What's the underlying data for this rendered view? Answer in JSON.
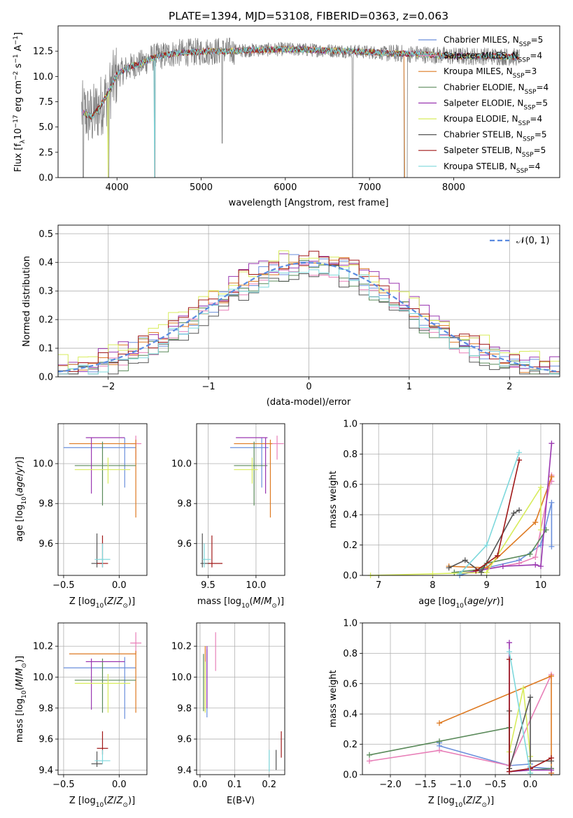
{
  "figure": {
    "title": "PLATE=1394, MJD=53108, FIBERID=0363, z=0.063"
  },
  "chart_data": [
    {
      "id": "spectrum",
      "type": "line",
      "xlabel": "wavelength [Angstrom, rest frame]",
      "ylabel_parts": [
        "Flux [f",
        "λ",
        "10",
        "−17",
        " erg cm",
        "−2",
        " s",
        "−1",
        " A",
        "−1",
        "]"
      ],
      "xlim": [
        3300,
        9260
      ],
      "ylim": [
        0,
        15.0
      ],
      "xticks": [
        4000,
        5000,
        6000,
        7000,
        8000
      ],
      "yticks": [
        0.0,
        2.5,
        5.0,
        7.5,
        10.0,
        12.5
      ],
      "grid": false,
      "legend_position": "right",
      "legend": [
        {
          "label": "Chabrier MILES, N",
          "sub": "SSP",
          "tail": "=5",
          "color": "#6a8fdc"
        },
        {
          "label": "Salpeter MILES, N",
          "sub": "SSP",
          "tail": "=4",
          "color": "#e87fb8"
        },
        {
          "label": "Kroupa MILES, N",
          "sub": "SSP",
          "tail": "=3",
          "color": "#de7a22"
        },
        {
          "label": "Chabrier ELODIE, N",
          "sub": "SSP",
          "tail": "=4",
          "color": "#5a8a5a"
        },
        {
          "label": "Salpeter ELODIE, N",
          "sub": "SSP",
          "tail": "=5",
          "color": "#9a37b0"
        },
        {
          "label": "Kroupa ELODIE, N",
          "sub": "SSP",
          "tail": "=4",
          "color": "#d8ec5c"
        },
        {
          "label": "Chabrier STELIB, N",
          "sub": "SSP",
          "tail": "=5",
          "color": "#555555"
        },
        {
          "label": "Salpeter STELIB, N",
          "sub": "SSP",
          "tail": "=5",
          "color": "#a01818"
        },
        {
          "label": "Kroupa STELIB, N",
          "sub": "SSP",
          "tail": "=4",
          "color": "#7ed8dc"
        }
      ],
      "data_color": "#808080",
      "continuum": {
        "x": [
          3580,
          3700,
          3800,
          3900,
          4000,
          4100,
          4200,
          4300,
          4400,
          4500,
          4700,
          4900,
          5100,
          5300,
          5600,
          6000,
          6400,
          6800,
          7200,
          7600,
          8000,
          8500,
          8800
        ],
        "y": [
          6.5,
          6.0,
          7.0,
          8.5,
          10.2,
          10.7,
          11.1,
          11.3,
          11.8,
          12.0,
          12.3,
          12.4,
          12.5,
          12.5,
          12.6,
          12.7,
          12.6,
          12.5,
          12.3,
          12.2,
          12.0,
          12.0,
          11.9
        ]
      }
    },
    {
      "id": "residuals",
      "type": "bar",
      "xlabel": "(data-model)/error",
      "ylabel": "Normed distribution",
      "xlim": [
        -2.5,
        2.5
      ],
      "ylim": [
        0,
        0.53
      ],
      "xticks": [
        -2,
        -1,
        0,
        1,
        2
      ],
      "yticks": [
        0.0,
        0.1,
        0.2,
        0.3,
        0.4,
        0.5
      ],
      "grid": true,
      "bin_width": 0.1,
      "curve_label": "𝒩(0, 1)",
      "curve_color": "#5b8be0"
    },
    {
      "id": "age-Z",
      "type": "scatter",
      "xlabel": "Z [log",
      "xlabel_sub": "10",
      "xlabel_tail": "(Z/Z",
      "ylabel": "age  [log",
      "xlim": [
        -0.55,
        0.25
      ],
      "ylim": [
        9.44,
        10.2
      ],
      "xticks": [
        -0.5,
        0.0
      ],
      "yticks": [
        9.6,
        9.8,
        10.0
      ],
      "grid": true
    },
    {
      "id": "age-mass",
      "type": "scatter",
      "xlabel": "mass [log",
      "xlim": [
        9.38,
        10.3
      ],
      "ylim": [
        9.44,
        10.2
      ],
      "xticks": [
        9.5,
        10.0
      ],
      "yticks": [
        9.6,
        9.8,
        10.0
      ],
      "grid": true
    },
    {
      "id": "mw-age",
      "type": "line",
      "xlabel": "age  [log",
      "ylabel": "mass weight",
      "xlim": [
        6.7,
        10.35
      ],
      "ylim": [
        0,
        1.0
      ],
      "xticks": [
        7,
        8,
        9,
        10
      ],
      "yticks": [
        0.0,
        0.2,
        0.4,
        0.6,
        0.8,
        1.0
      ],
      "grid": true
    },
    {
      "id": "mass-Z",
      "type": "scatter",
      "xlabel": "Z [log",
      "ylabel": "mass [log",
      "xlim": [
        -0.55,
        0.25
      ],
      "ylim": [
        9.37,
        10.35
      ],
      "xticks": [
        -0.5,
        0.0
      ],
      "yticks": [
        9.4,
        9.6,
        9.8,
        10.0,
        10.2
      ],
      "grid": true
    },
    {
      "id": "mass-ebv",
      "type": "scatter",
      "xlabel": "E(B-V)",
      "xlim": [
        -0.01,
        0.245
      ],
      "ylim": [
        9.37,
        10.35
      ],
      "xticks": [
        0.0,
        0.1,
        0.2
      ],
      "yticks": [
        9.4,
        9.6,
        9.8,
        10.0,
        10.2
      ],
      "grid": true
    },
    {
      "id": "mw-Z",
      "type": "line",
      "xlabel": "Z [log",
      "ylabel": "mass weight",
      "xlim": [
        -2.4,
        0.42
      ],
      "ylim": [
        0,
        1.0
      ],
      "xticks": [
        -2.0,
        -1.5,
        -1.0,
        -0.5,
        0.0
      ],
      "yticks": [
        0.0,
        0.2,
        0.4,
        0.6,
        0.8,
        1.0
      ],
      "grid": true
    }
  ],
  "models": [
    {
      "color": "#6a8fdc",
      "Z": 0.05,
      "Zlo": -0.5,
      "Zhi": 0.15,
      "age": 10.08,
      "age_lo": 9.88,
      "age_hi": 10.13,
      "mass": 10.06,
      "mass_lo": 9.73,
      "mass_hi": 10.13,
      "ebv": 0.02,
      "ebv_lo": 9.74,
      "ebv_hi": 10.18,
      "mw_age": [
        [
          8.5,
          0.0
        ],
        [
          9.0,
          0.05
        ],
        [
          9.6,
          0.1
        ],
        [
          10.0,
          0.2
        ],
        [
          10.2,
          0.48
        ],
        [
          10.2,
          0.19
        ]
      ],
      "mw_Z": [
        [
          -1.3,
          0.21
        ],
        [
          -1.3,
          0.19
        ],
        [
          -0.3,
          0.06
        ],
        [
          0.0,
          0.07
        ],
        [
          0.0,
          0.05
        ],
        [
          0.3,
          0.04
        ]
      ]
    },
    {
      "color": "#e87fb8",
      "Z": 0.15,
      "Zlo": 0.1,
      "Zhi": 0.2,
      "age": 10.1,
      "age_lo": 10.02,
      "age_hi": 10.14,
      "mass": 10.22,
      "mass_lo": 10.15,
      "mass_hi": 10.29,
      "ebv": 0.045,
      "ebv_lo": 10.04,
      "ebv_hi": 10.29,
      "mw_age": [
        [
          8.5,
          0.01
        ],
        [
          9.6,
          0.08
        ],
        [
          9.9,
          0.12
        ],
        [
          10.2,
          0.66
        ],
        [
          10.2,
          0.62
        ]
      ],
      "mw_Z": [
        [
          -2.3,
          0.09
        ],
        [
          -1.3,
          0.16
        ],
        [
          -0.3,
          0.06
        ],
        [
          0.3,
          0.66
        ]
      ]
    },
    {
      "color": "#de7a22",
      "Z": 0.15,
      "Zlo": -0.45,
      "Zhi": 0.15,
      "age": 10.1,
      "age_lo": 9.73,
      "age_hi": 10.12,
      "mass": 10.15,
      "mass_lo": 9.77,
      "mass_hi": 10.17,
      "ebv": 0.015,
      "ebv_lo": 9.78,
      "ebv_hi": 10.2,
      "mw_age": [
        [
          8.3,
          0.06
        ],
        [
          9.0,
          0.05
        ],
        [
          9.9,
          0.35
        ],
        [
          10.2,
          0.65
        ]
      ],
      "mw_Z": [
        [
          -1.3,
          0.34
        ],
        [
          0.3,
          0.65
        ],
        [
          0.3,
          0.01
        ]
      ]
    },
    {
      "color": "#5a8a5a",
      "Z": -0.15,
      "Zlo": -0.4,
      "Zhi": 0.15,
      "age": 9.99,
      "age_lo": 9.79,
      "age_hi": 10.11,
      "mass": 9.98,
      "mass_lo": 9.77,
      "mass_hi": 10.12,
      "ebv": 0.01,
      "ebv_lo": 9.78,
      "ebv_hi": 10.15,
      "mw_age": [
        [
          8.4,
          0.02
        ],
        [
          8.9,
          0.04
        ],
        [
          9.0,
          0.08
        ],
        [
          9.8,
          0.14
        ],
        [
          10.1,
          0.3
        ]
      ],
      "mw_Z": [
        [
          -2.3,
          0.13
        ],
        [
          -1.3,
          0.22
        ],
        [
          -0.3,
          0.31
        ],
        [
          -0.3,
          0.02
        ],
        [
          0.3,
          0.04
        ]
      ]
    },
    {
      "color": "#9a37b0",
      "Z": -0.25,
      "Zlo": -0.3,
      "Zhi": 0.05,
      "age": 10.13,
      "age_lo": 9.85,
      "age_hi": 10.13,
      "mass": 10.1,
      "mass_lo": 9.79,
      "mass_hi": 10.12,
      "ebv": 0.02,
      "ebv_lo": 9.8,
      "ebv_hi": 10.2,
      "mw_age": [
        [
          8.5,
          0.01
        ],
        [
          9.3,
          0.06
        ],
        [
          9.9,
          0.07
        ],
        [
          10.0,
          0.06
        ],
        [
          10.2,
          0.87
        ]
      ],
      "mw_Z": [
        [
          -0.3,
          0.87
        ],
        [
          -0.3,
          0.02
        ],
        [
          0.0,
          0.03
        ],
        [
          0.3,
          0.03
        ]
      ]
    },
    {
      "color": "#d8ec5c",
      "Z": -0.1,
      "Zlo": -0.4,
      "Zhi": 0.1,
      "age": 9.97,
      "age_lo": 9.9,
      "age_hi": 10.03,
      "mass": 9.96,
      "mass_lo": 9.77,
      "mass_hi": 10.02,
      "ebv": 0.015,
      "ebv_lo": 9.77,
      "ebv_hi": 10.1,
      "mw_age": [
        [
          6.85,
          0.0
        ],
        [
          8.0,
          0.01
        ],
        [
          9.0,
          0.02
        ],
        [
          10.0,
          0.58
        ],
        [
          10.0,
          0.3
        ]
      ],
      "mw_Z": [
        [
          -0.3,
          0.15
        ],
        [
          -0.1,
          0.57
        ],
        [
          0.0,
          0.12
        ],
        [
          0.0,
          0.01
        ]
      ]
    },
    {
      "color": "#555555",
      "Z": -0.2,
      "Zlo": -0.25,
      "Zhi": -0.15,
      "age": 9.5,
      "age_lo": 9.48,
      "age_hi": 9.65,
      "mass": 9.44,
      "mass_lo": 9.42,
      "mass_hi": 9.52,
      "ebv": 0.22,
      "ebv_lo": 9.4,
      "ebv_hi": 9.53,
      "mw_age": [
        [
          8.3,
          0.05
        ],
        [
          8.6,
          0.1
        ],
        [
          8.9,
          0.02
        ],
        [
          9.5,
          0.41
        ],
        [
          9.6,
          0.43
        ]
      ],
      "mw_Z": [
        [
          -0.3,
          0.42
        ],
        [
          -0.3,
          0.04
        ],
        [
          0.0,
          0.51
        ],
        [
          0.0,
          0.09
        ],
        [
          0.3,
          0.09
        ]
      ]
    },
    {
      "color": "#a01818",
      "Z": -0.15,
      "Zlo": -0.2,
      "Zhi": -0.1,
      "age": 9.5,
      "age_lo": 9.48,
      "age_hi": 9.64,
      "mass": 9.54,
      "mass_lo": 9.5,
      "mass_hi": 9.65,
      "ebv": 0.235,
      "ebv_lo": 9.48,
      "ebv_hi": 9.65,
      "mw_age": [
        [
          8.8,
          0.03
        ],
        [
          9.2,
          0.13
        ],
        [
          9.6,
          0.76
        ]
      ],
      "mw_Z": [
        [
          -0.3,
          0.76
        ],
        [
          -0.3,
          0.02
        ],
        [
          0.0,
          0.04
        ],
        [
          0.3,
          0.11
        ]
      ]
    },
    {
      "color": "#7ed8dc",
      "Z": -0.15,
      "Zlo": -0.22,
      "Zhi": -0.08,
      "age": 9.52,
      "age_lo": 9.48,
      "age_hi": 9.6,
      "mass": 9.46,
      "mass_lo": 9.44,
      "mass_hi": 9.53,
      "ebv": 0.2,
      "ebv_lo": 9.39,
      "ebv_hi": 9.53,
      "mw_age": [
        [
          8.5,
          0.01
        ],
        [
          9.0,
          0.2
        ],
        [
          9.6,
          0.81
        ]
      ],
      "mw_Z": [
        [
          -0.3,
          0.81
        ],
        [
          0.0,
          0.01
        ]
      ]
    }
  ],
  "model_hist_offsets": [
    0.0,
    -0.01,
    0.01,
    -0.02,
    0.02,
    0.03,
    -0.03,
    0.015,
    -0.015
  ]
}
